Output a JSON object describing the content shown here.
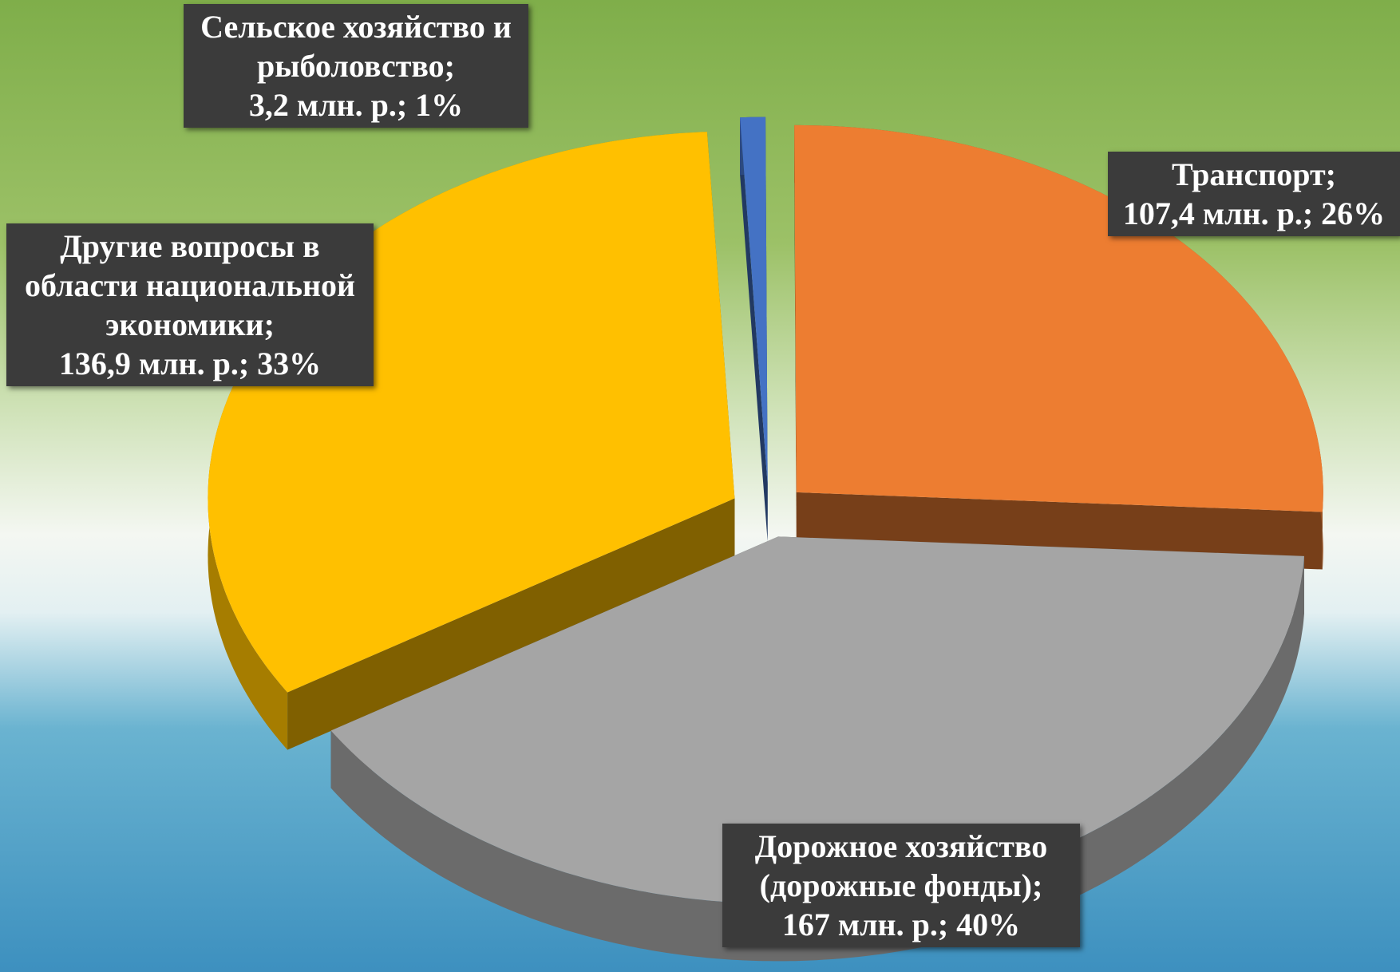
{
  "chart_data": {
    "type": "pie3d",
    "categories": [
      "Сельское хозяйство и рыболовство",
      "Транспорт",
      "Дорожное хозяйство (дорожные фонды)",
      "Другие вопросы в области национальной экономики"
    ],
    "values": [
      3.2,
      107.4,
      167,
      136.9
    ],
    "value_labels": [
      "3,2 млн. р.; 1%",
      "107,4 млн. р.; 26%",
      "167 млн. р.; 40%",
      "136,9 млн. р.; 33%"
    ],
    "label_separator": ";",
    "colors": [
      "#4472c4",
      "#ed7d31",
      "#a5a5a5",
      "#ffc000"
    ],
    "exploded": true
  }
}
